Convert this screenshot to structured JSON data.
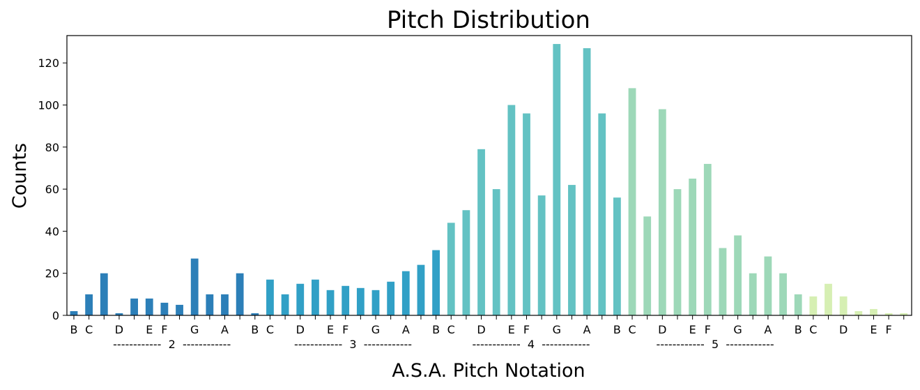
{
  "chart_data": {
    "type": "bar",
    "title": "Pitch Distribution",
    "xlabel": "A.S.A. Pitch Notation",
    "ylabel": "Counts",
    "ylim": [
      0,
      133
    ],
    "yticks": [
      0,
      20,
      40,
      60,
      80,
      100,
      120
    ],
    "grid": false,
    "legend": "none",
    "categories": [
      "B1",
      "C2",
      "C#2",
      "D2",
      "D#2",
      "E2",
      "F2",
      "F#2",
      "G2",
      "G#2",
      "A2",
      "A#2",
      "B2",
      "C3",
      "C#3",
      "D3",
      "D#3",
      "E3",
      "F3",
      "F#3",
      "G3",
      "G#3",
      "A3",
      "A#3",
      "B3",
      "C4",
      "C#4",
      "D4",
      "D#4",
      "E4",
      "F4",
      "F#4",
      "G4",
      "G#4",
      "A4",
      "A#4",
      "B4",
      "C5",
      "C#5",
      "D5",
      "D#5",
      "E5",
      "F5",
      "F#5",
      "G5",
      "G#5",
      "A5",
      "A#5",
      "B5",
      "C6",
      "C#6",
      "D6",
      "D#6",
      "E6",
      "F6",
      "F#6"
    ],
    "values": [
      2,
      10,
      20,
      1,
      8,
      8,
      6,
      5,
      27,
      10,
      10,
      20,
      1,
      17,
      10,
      15,
      17,
      12,
      14,
      13,
      12,
      16,
      21,
      24,
      31,
      44,
      50,
      79,
      60,
      100,
      96,
      57,
      129,
      62,
      127,
      96,
      56,
      108,
      47,
      98,
      60,
      65,
      72,
      32,
      38,
      20,
      28,
      20,
      10,
      9,
      15,
      9,
      2,
      3,
      1,
      1
    ],
    "tick_labels": [
      "B",
      "C",
      "",
      "D",
      "",
      "E",
      "F",
      "",
      "G",
      "",
      "A",
      "",
      "B",
      "C",
      "",
      "D",
      "",
      "E",
      "F",
      "",
      "G",
      "",
      "A",
      "",
      "B",
      "C",
      "",
      "D",
      "",
      "E",
      "F",
      "",
      "G",
      "",
      "A",
      "",
      "B",
      "C",
      "",
      "D",
      "",
      "E",
      "F",
      "",
      "G",
      "",
      "A",
      "",
      "B",
      "C",
      "",
      "D",
      "",
      "E",
      "F",
      ""
    ],
    "octave_labels": [
      {
        "text": "------------  2  ------------",
        "center": 6.5
      },
      {
        "text": "------------  3  ------------",
        "center": 18.5
      },
      {
        "text": "------------  4  ------------",
        "center": 30.3
      },
      {
        "text": "------------  5  ------------",
        "center": 42.5
      }
    ],
    "colors": [
      "#2c7fb8",
      "#2c7fb8",
      "#2c7fb8",
      "#2c7fb8",
      "#2c7fb8",
      "#2c7fb8",
      "#2c7fb8",
      "#2c7fb8",
      "#2c7fb8",
      "#2c7fb8",
      "#2c7fb8",
      "#2c7fb8",
      "#2c7fb8",
      "#31a0c6",
      "#31a0c6",
      "#31a0c6",
      "#31a0c6",
      "#31a0c6",
      "#31a0c6",
      "#31a0c6",
      "#31a0c6",
      "#31a0c6",
      "#31a0c6",
      "#31a0c6",
      "#31a0c6",
      "#63c2c3",
      "#63c2c3",
      "#63c2c3",
      "#63c2c3",
      "#63c2c3",
      "#63c2c3",
      "#63c2c3",
      "#63c2c3",
      "#63c2c3",
      "#63c2c3",
      "#63c2c3",
      "#63c2c3",
      "#9dd8b8",
      "#9dd8b8",
      "#9dd8b8",
      "#9dd8b8",
      "#9dd8b8",
      "#9dd8b8",
      "#9dd8b8",
      "#9dd8b8",
      "#9dd8b8",
      "#9dd8b8",
      "#9dd8b8",
      "#9dd8b8",
      "#d6efb3",
      "#d6efb3",
      "#d6efb3",
      "#d6efb3",
      "#d6efb3",
      "#d6efb3",
      "#d6efb3"
    ]
  }
}
